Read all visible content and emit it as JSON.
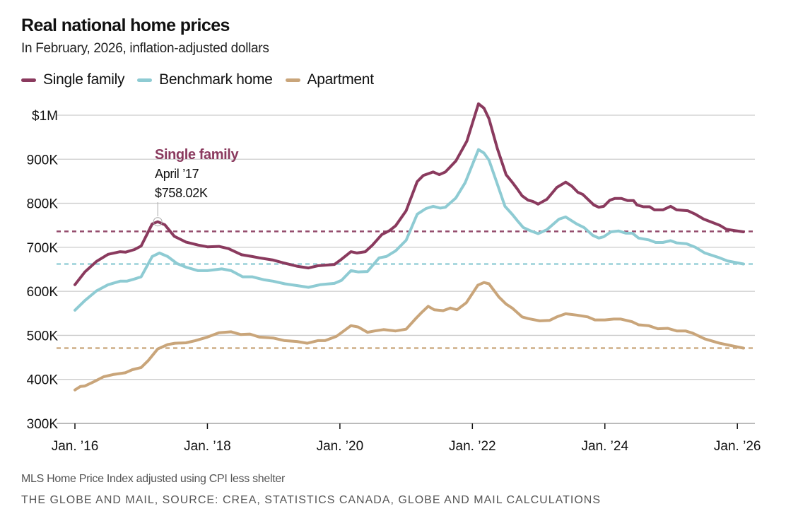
{
  "header": {
    "title": "Real national home prices",
    "subtitle": "In February, 2026, inflation-adjusted dollars"
  },
  "colors": {
    "single_family": "#8a3a5e",
    "benchmark": "#8ecbd3",
    "apartment": "#c9a57a",
    "grid": "#cccccc"
  },
  "annotation": {
    "series": "Single family",
    "date": "April ’17",
    "value": "$758.02K"
  },
  "footer": {
    "note": "MLS Home Price Index adjusted using CPI less shelter",
    "credit": "THE GLOBE AND MAIL, SOURCE: CREA, STATISTICS CANADA, GLOBE AND MAIL CALCULATIONS"
  },
  "chart_data": {
    "type": "line",
    "title": "Real national home prices",
    "subtitle": "In February, 2026, inflation-adjusted dollars",
    "x_unit": "months since Jan. 2016",
    "xlim": [
      0,
      121
    ],
    "ylim": [
      300,
      1000
    ],
    "y_unit": "thousands of dollars",
    "y_ticks": [
      {
        "value": 1000,
        "label": "$1M"
      },
      {
        "value": 900,
        "label": "900K"
      },
      {
        "value": 800,
        "label": "800K"
      },
      {
        "value": 700,
        "label": "700K"
      },
      {
        "value": 600,
        "label": "600K"
      },
      {
        "value": 500,
        "label": "500K"
      },
      {
        "value": 400,
        "label": "400K"
      },
      {
        "value": 300,
        "label": "300K"
      }
    ],
    "x_ticks": [
      {
        "value": 0,
        "label": "Jan. ’16"
      },
      {
        "value": 24,
        "label": "Jan. ’18"
      },
      {
        "value": 48,
        "label": "Jan. ’20"
      },
      {
        "value": 72,
        "label": "Jan. ’22"
      },
      {
        "value": 96,
        "label": "Jan. ’24"
      },
      {
        "value": 120,
        "label": "Jan. ’26"
      }
    ],
    "grid": true,
    "legend_position": "top-left",
    "series": [
      {
        "key": "single_family",
        "name": "Single family",
        "reference_line": 736,
        "x": [
          0,
          1.8,
          3.9,
          6,
          8.2,
          9.2,
          10.8,
          12,
          14,
          15,
          16.3,
          18,
          20.1,
          22.3,
          24,
          26.1,
          27.8,
          30.2,
          32.1,
          33.4,
          35.9,
          37.6,
          40.2,
          42.3,
          44,
          47,
          48.3,
          50,
          51.1,
          52.6,
          53.9,
          55.6,
          57,
          58.1,
          60,
          62,
          63.1,
          64.9,
          66,
          67.1,
          69,
          71,
          73.1,
          74.1,
          75,
          76.5,
          78.1,
          79.2,
          80.1,
          81,
          82.1,
          83,
          83.9,
          85.5,
          87.3,
          88.9,
          90,
          91.1,
          92,
          94,
          94.9,
          95.8,
          96.9,
          97.8,
          99,
          100.1,
          101.2,
          101.8,
          103,
          104.1,
          105,
          106.5,
          107.9,
          109,
          111,
          112.4,
          113.9,
          116.8,
          118,
          119.5,
          121.1
        ],
        "values": [
          615,
          644,
          668,
          684,
          690,
          689,
          695,
          703,
          753,
          758,
          751,
          725,
          712,
          705,
          701,
          702,
          697,
          683,
          679,
          676,
          671,
          665,
          657,
          653,
          658,
          661,
          673,
          690,
          687,
          690,
          705,
          729,
          738,
          749,
          783,
          849,
          863,
          871,
          865,
          871,
          896,
          941,
          1026,
          1016,
          992,
          925,
          865,
          848,
          833,
          817,
          807,
          804,
          798,
          809,
          836,
          848,
          839,
          825,
          820,
          796,
          791,
          793,
          807,
          811,
          811,
          806,
          806,
          796,
          792,
          792,
          785,
          785,
          793,
          785,
          783,
          775,
          764,
          750,
          741,
          738,
          735
        ]
      },
      {
        "key": "benchmark",
        "name": "Benchmark home",
        "reference_line": 662,
        "x": [
          0,
          1.8,
          3.9,
          6,
          8.2,
          9.4,
          10.8,
          12,
          14,
          15.3,
          16.8,
          18.5,
          20.1,
          22.3,
          24,
          26.6,
          28.3,
          30.4,
          32.1,
          34.3,
          35.9,
          38,
          40.2,
          42.3,
          44.4,
          47,
          48.3,
          50,
          51.3,
          53,
          55.1,
          56.4,
          58.1,
          60,
          62,
          63.6,
          64.9,
          66.2,
          67.1,
          69,
          70.7,
          73.1,
          74.1,
          75,
          76.5,
          77.9,
          79.2,
          80.1,
          81.2,
          82.6,
          83.9,
          85.5,
          87.7,
          88.9,
          90.9,
          92.2,
          93.8,
          94.9,
          95.8,
          97.1,
          98.5,
          99.8,
          101,
          102.1,
          103.9,
          105.2,
          106.5,
          107.9,
          109,
          110.8,
          112.4,
          114.1,
          116.8,
          118.2,
          121.1
        ],
        "values": [
          557,
          579,
          601,
          615,
          623,
          623,
          628,
          633,
          679,
          687,
          679,
          663,
          655,
          647,
          647,
          651,
          647,
          633,
          633,
          626,
          623,
          617,
          613,
          609,
          615,
          618,
          625,
          647,
          644,
          645,
          676,
          679,
          692,
          716,
          775,
          788,
          793,
          789,
          791,
          812,
          847,
          922,
          914,
          898,
          844,
          793,
          775,
          761,
          745,
          737,
          731,
          740,
          764,
          769,
          753,
          745,
          727,
          721,
          724,
          735,
          737,
          732,
          732,
          721,
          717,
          711,
          711,
          715,
          710,
          708,
          700,
          687,
          676,
          669,
          662
        ]
      },
      {
        "key": "apartment",
        "name": "Apartment",
        "reference_line": 471,
        "x": [
          0,
          1,
          1.8,
          3.5,
          5.2,
          6.9,
          9.1,
          10.4,
          12,
          13.3,
          15,
          16.8,
          18.1,
          20.1,
          21.8,
          24,
          26.1,
          28.3,
          30,
          31.7,
          33.4,
          35.9,
          38,
          40.2,
          42.1,
          44,
          45.3,
          47.4,
          50,
          51.3,
          53,
          54.3,
          55.9,
          58.1,
          60,
          61.8,
          62.9,
          64,
          65.1,
          66.7,
          68,
          69.2,
          70.9,
          73,
          74.1,
          75,
          76.8,
          78.1,
          79.2,
          81,
          82.1,
          84.2,
          86,
          87.3,
          88.9,
          90.9,
          92.9,
          94.2,
          96,
          97.6,
          98.9,
          100.9,
          102.1,
          103.9,
          105.6,
          107.4,
          109,
          110.6,
          111.9,
          114.1,
          116.8,
          119.5,
          121.1
        ],
        "values": [
          376,
          384,
          385,
          395,
          406,
          411,
          415,
          422,
          427,
          443,
          469,
          479,
          482,
          483,
          488,
          496,
          506,
          508,
          502,
          503,
          496,
          494,
          488,
          486,
          482,
          488,
          488,
          498,
          522,
          519,
          507,
          510,
          513,
          510,
          514,
          539,
          553,
          566,
          558,
          556,
          562,
          558,
          574,
          614,
          620,
          617,
          587,
          571,
          562,
          542,
          538,
          533,
          534,
          542,
          549,
          546,
          542,
          535,
          535,
          537,
          537,
          531,
          524,
          522,
          515,
          516,
          510,
          510,
          505,
          492,
          482,
          475,
          471
        ]
      }
    ]
  }
}
